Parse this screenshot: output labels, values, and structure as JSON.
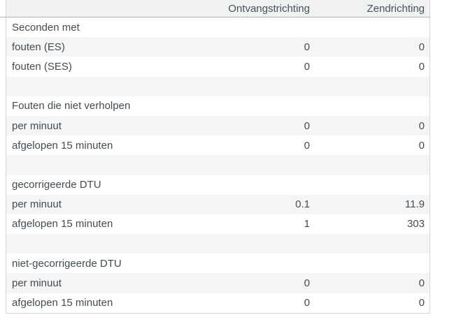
{
  "colors": {
    "header_background": "#f0f1f1",
    "header_underline": "#a9b4ba",
    "table_border": "#d4d6d7",
    "stripe_background": "#f5f5f5",
    "text": "#434c52"
  },
  "table": {
    "columns": {
      "label": "",
      "receive": "Ontvangstrichting",
      "send": "Zendrichting"
    },
    "rows": [
      {
        "type": "group",
        "label": "Seconden met",
        "receive": "",
        "send": ""
      },
      {
        "type": "data",
        "label": "fouten (ES)",
        "receive": "0",
        "send": "0"
      },
      {
        "type": "data",
        "label": "fouten (SES)",
        "receive": "0",
        "send": "0"
      },
      {
        "type": "spacer",
        "label": "",
        "receive": "",
        "send": ""
      },
      {
        "type": "group",
        "label": "Fouten die niet verholpen",
        "receive": "",
        "send": ""
      },
      {
        "type": "data",
        "label": "per minuut",
        "receive": "0",
        "send": "0"
      },
      {
        "type": "data",
        "label": "afgelopen 15 minuten",
        "receive": "0",
        "send": "0"
      },
      {
        "type": "spacer",
        "label": "",
        "receive": "",
        "send": ""
      },
      {
        "type": "group",
        "label": "gecorrigeerde DTU",
        "receive": "",
        "send": ""
      },
      {
        "type": "data",
        "label": "per minuut",
        "receive": "0.1",
        "send": "11.9"
      },
      {
        "type": "data",
        "label": "afgelopen 15 minuten",
        "receive": "1",
        "send": "303"
      },
      {
        "type": "spacer",
        "label": "",
        "receive": "",
        "send": ""
      },
      {
        "type": "group",
        "label": "niet-gecorrigeerde DTU",
        "receive": "",
        "send": ""
      },
      {
        "type": "data",
        "label": "per minuut",
        "receive": "0",
        "send": "0"
      },
      {
        "type": "data",
        "label": "afgelopen 15 minuten",
        "receive": "0",
        "send": "0"
      }
    ]
  }
}
